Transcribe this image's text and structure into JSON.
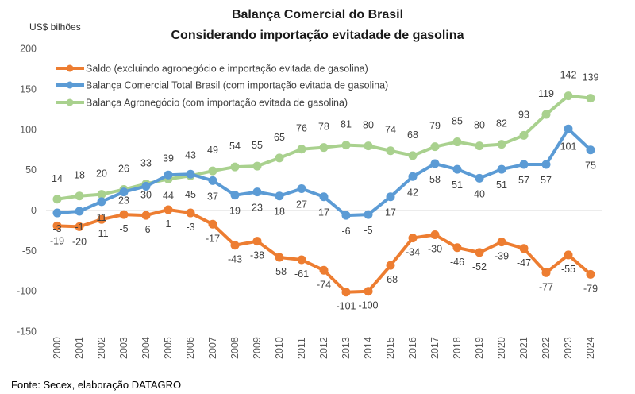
{
  "chart_data": {
    "type": "line",
    "title": "Balança Comercial do Brasil",
    "subtitle": "Considerando importação evitadade de gasolina",
    "ylabel": "US$ bilhões",
    "xlabel": "",
    "ylim": [
      -150,
      200
    ],
    "yticks": [
      200,
      150,
      100,
      50,
      0,
      -50,
      -100,
      -150
    ],
    "grid": "zero-line only",
    "legend_position": "top-left",
    "x": [
      "2000",
      "2001",
      "2002",
      "2003",
      "2004",
      "2005",
      "2006",
      "2007",
      "2008",
      "2009",
      "2010",
      "2011",
      "2012",
      "2013",
      "2014",
      "2015",
      "2016",
      "2017",
      "2018",
      "2019",
      "2020",
      "2021",
      "2022",
      "2023",
      "2024"
    ],
    "series": [
      {
        "name": "Saldo (excluindo agronegócio e importação evitada de gasolina)",
        "color": "#ED7D31",
        "values": [
          -19,
          -20,
          -11,
          -5,
          -6,
          1,
          -3,
          -17,
          -43,
          -38,
          -58,
          -61,
          -74,
          -101,
          -100,
          -68,
          -34,
          -30,
          -46,
          -52,
          -39,
          -47,
          -77,
          -55,
          -79
        ]
      },
      {
        "name": " Balança Comercial Total Brasil (com importação evitada de gasolina)",
        "color": "#5B9BD5",
        "values": [
          -3,
          -1,
          11,
          23,
          30,
          44,
          45,
          37,
          19,
          23,
          18,
          27,
          17,
          -6,
          -5,
          17,
          42,
          58,
          51,
          40,
          51,
          57,
          57,
          101,
          75
        ]
      },
      {
        "name": "Balança Agronegócio (com importação evitada de gasolina)",
        "color": "#A9D18E",
        "values": [
          14,
          18,
          20,
          26,
          33,
          39,
          43,
          49,
          54,
          55,
          65,
          76,
          78,
          81,
          80,
          74,
          68,
          79,
          85,
          80,
          82,
          93,
          119,
          142,
          139
        ]
      }
    ],
    "source": "Fonte: Secex, elaboração DATAGRO"
  }
}
